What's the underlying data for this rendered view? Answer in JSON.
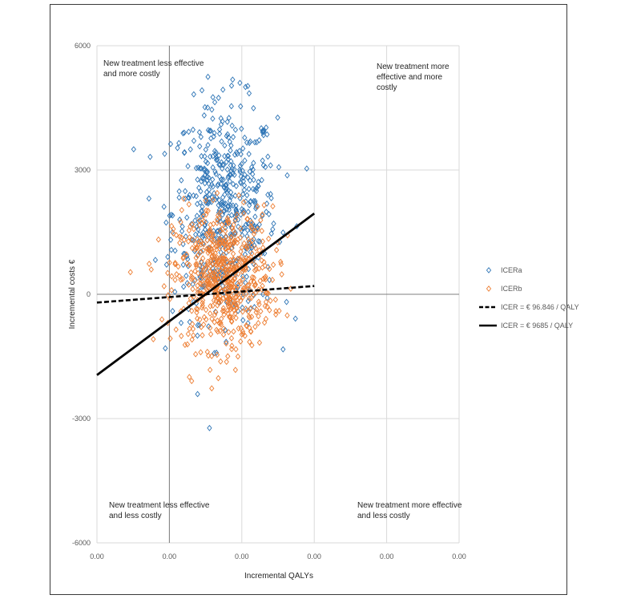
{
  "chart_data": {
    "type": "scatter",
    "title": "",
    "xlabel": "Incremental QALYs",
    "ylabel": "Incremental costs €",
    "xlim": [
      -0.05,
      0.2
    ],
    "ylim": [
      -6000,
      6000
    ],
    "x_tick_labels": [
      "0.00",
      "0.00",
      "0.00",
      "0.00",
      "0.00",
      "0.00"
    ],
    "y_ticks": [
      6000,
      3000,
      0,
      -3000,
      -6000
    ],
    "y_tick_labels": [
      "6000",
      "3000",
      "0",
      "-3000",
      "-6000"
    ],
    "grid": true,
    "legend_position": "right",
    "quadrant_labels": {
      "top_left": [
        "New treatment less effective",
        "and more costly"
      ],
      "top_right": [
        "New treatment more",
        "effective and more",
        "costly"
      ],
      "bottom_left": [
        "New treatment less effective",
        "and less costly"
      ],
      "bottom_right": [
        "New treatment more effective",
        "and less costly"
      ]
    },
    "series": [
      {
        "name": "ICERa",
        "kind": "scatter",
        "color": "#2e75b6",
        "marker": "diamond-open",
        "n": 560,
        "center": [
          0.038,
          2000
        ],
        "sd": [
          0.018,
          1300
        ]
      },
      {
        "name": "ICERb",
        "kind": "scatter",
        "color": "#ed7d31",
        "marker": "diamond-open",
        "n": 620,
        "center": [
          0.037,
          400
        ],
        "sd": [
          0.017,
          850
        ]
      },
      {
        "name": "ICER = € 96.846 / QALY",
        "kind": "line",
        "color": "#000000",
        "dash": "dashed",
        "points": [
          [
            -0.05,
            -200
          ],
          [
            0.1,
            200
          ]
        ]
      },
      {
        "name": "ICER = € 9685 / QALY",
        "kind": "line",
        "color": "#000000",
        "dash": "solid",
        "points": [
          [
            -0.05,
            -1950
          ],
          [
            0.1,
            1950
          ]
        ]
      }
    ]
  }
}
